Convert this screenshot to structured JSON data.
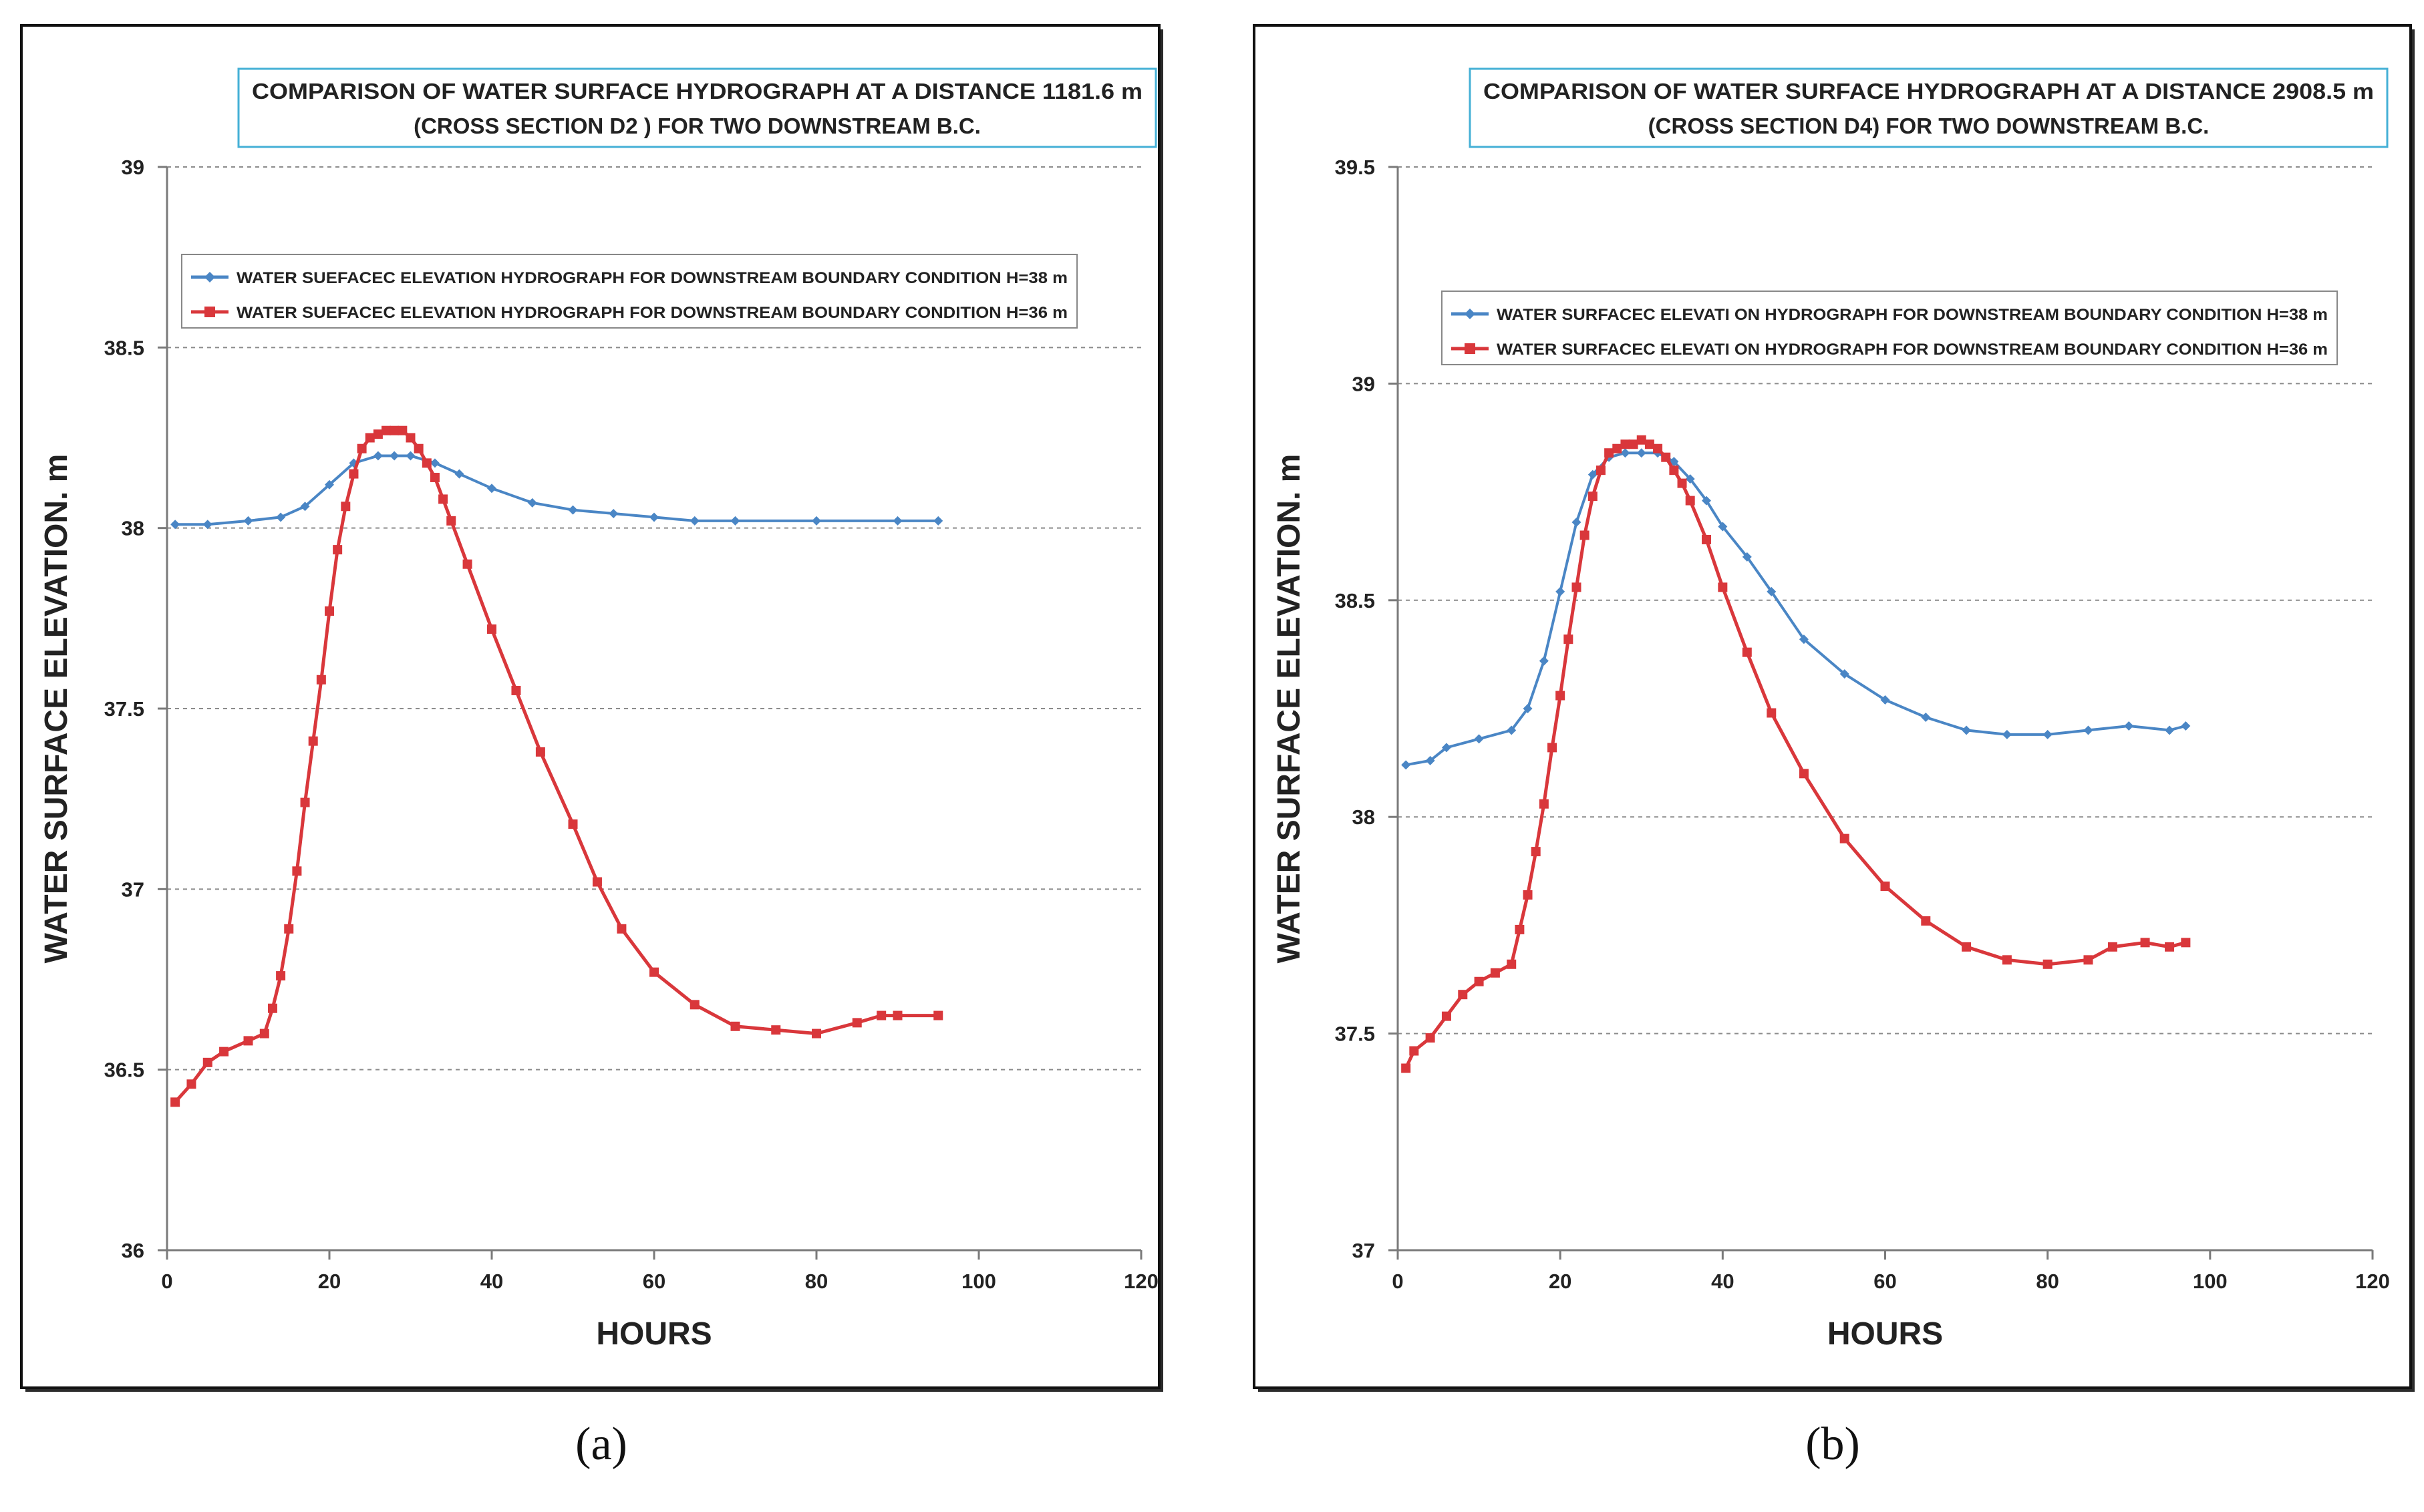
{
  "colors": {
    "series_h38": "#4a86c5",
    "series_h36": "#d9373b",
    "title_border": "#45b0d6",
    "grid": "#8c8c8c",
    "frame": "#111111"
  },
  "chart_data": [
    {
      "type": "line",
      "panel_label": "(a)",
      "title_line1": "COMPARISON OF  WATER SURFACE HYDROGRAPH AT A DISTANCE  1181.6 m",
      "title_line2": "(CROSS SECTION  D2 )   FOR TWO  DOWNSTREAM   B.C.",
      "xlabel": "HOURS",
      "ylabel": "WATER SURFACE ELEVATION. m",
      "xlim": [
        0,
        120
      ],
      "ylim": [
        36,
        39
      ],
      "xticks": [
        0,
        20,
        40,
        60,
        80,
        100,
        120
      ],
      "xtick_labels": [
        "0",
        "20",
        "40",
        "60",
        "80",
        "100",
        "120"
      ],
      "yticks": [
        36,
        36.5,
        37,
        37.5,
        38,
        38.5,
        39
      ],
      "ytick_labels": [
        "36",
        "36.5",
        "37",
        "37.5",
        "38",
        "38.5",
        "39"
      ],
      "grid": true,
      "legend_position": "upper-center",
      "series": [
        {
          "name": "WATER SUEFACEC ELEVATION HYDROGRAPH FOR DOWNSTREAM BOUNDARY CONDITION H=38 m",
          "color_key": "series_h38",
          "marker": "diamond",
          "x": [
            1,
            5,
            10,
            14,
            17,
            20,
            23,
            26,
            28,
            30,
            33,
            36,
            40,
            45,
            50,
            55,
            60,
            65,
            70,
            80,
            90,
            95
          ],
          "y": [
            38.01,
            38.01,
            38.02,
            38.03,
            38.06,
            38.12,
            38.18,
            38.2,
            38.2,
            38.2,
            38.18,
            38.15,
            38.11,
            38.07,
            38.05,
            38.04,
            38.03,
            38.02,
            38.02,
            38.02,
            38.02,
            38.02
          ]
        },
        {
          "name": "WATER SUEFACEC ELEVATION HYDROGRAPH FOR DOWNSTREAM BOUNDARY CONDITION H=36 m",
          "color_key": "series_h36",
          "marker": "square",
          "x": [
            1,
            3,
            5,
            7,
            10,
            12,
            13,
            14,
            15,
            16,
            17,
            18,
            19,
            20,
            21,
            22,
            23,
            24,
            25,
            26,
            27,
            28,
            29,
            30,
            31,
            32,
            33,
            34,
            35,
            37,
            40,
            43,
            46,
            50,
            53,
            56,
            60,
            65,
            70,
            75,
            80,
            85,
            88,
            90,
            95
          ],
          "y": [
            36.41,
            36.46,
            36.52,
            36.55,
            36.58,
            36.6,
            36.67,
            36.76,
            36.89,
            37.05,
            37.24,
            37.41,
            37.58,
            37.77,
            37.94,
            38.06,
            38.15,
            38.22,
            38.25,
            38.26,
            38.27,
            38.27,
            38.27,
            38.25,
            38.22,
            38.18,
            38.14,
            38.08,
            38.02,
            37.9,
            37.72,
            37.55,
            37.38,
            37.18,
            37.02,
            36.89,
            36.77,
            36.68,
            36.62,
            36.61,
            36.6,
            36.63,
            36.65,
            36.65,
            36.65
          ]
        }
      ]
    },
    {
      "type": "line",
      "panel_label": "(b)",
      "title_line1": "COMPARISON OF  WATER SURFACE HYDROGRAPH AT A DISTANCE  2908.5 m",
      "title_line2": "(CROSS SECTION  D4)    FOR TWO  DOWNSTREAM   B.C.",
      "xlabel": "HOURS",
      "ylabel": "WATER SURFACE ELEVATION. m",
      "xlim": [
        0,
        120
      ],
      "ylim": [
        37,
        39.5
      ],
      "xticks": [
        0,
        20,
        40,
        60,
        80,
        100,
        120
      ],
      "xtick_labels": [
        "0",
        "20",
        "40",
        "60",
        "80",
        "100",
        "120"
      ],
      "yticks": [
        37,
        37.5,
        38,
        38.5,
        39,
        39.5
      ],
      "ytick_labels": [
        "37",
        "37.5",
        "38",
        "38.5",
        "39",
        "39.5"
      ],
      "grid": true,
      "legend_position": "upper-center",
      "series": [
        {
          "name": "WATER SURFACEC ELEVATI ON HYDROGRAPH FOR DOWNSTREAM BOUNDARY CONDITION H=38 m",
          "color_key": "series_h38",
          "marker": "diamond",
          "x": [
            1,
            4,
            6,
            10,
            14,
            16,
            18,
            20,
            22,
            24,
            26,
            28,
            30,
            32,
            34,
            36,
            38,
            40,
            43,
            46,
            50,
            55,
            60,
            65,
            70,
            75,
            80,
            85,
            90,
            95,
            97
          ],
          "y": [
            38.12,
            38.13,
            38.16,
            38.18,
            38.2,
            38.25,
            38.36,
            38.52,
            38.68,
            38.79,
            38.83,
            38.84,
            38.84,
            38.84,
            38.82,
            38.78,
            38.73,
            38.67,
            38.6,
            38.52,
            38.41,
            38.33,
            38.27,
            38.23,
            38.2,
            38.19,
            38.19,
            38.2,
            38.21,
            38.2,
            38.21
          ]
        },
        {
          "name": "WATER SURFACEC ELEVATI ON HYDROGRAPH FOR DOWNSTREAM BOUNDARY CONDITION H=36 m",
          "color_key": "series_h36",
          "marker": "square",
          "x": [
            1,
            2,
            4,
            6,
            8,
            10,
            12,
            14,
            15,
            16,
            17,
            18,
            19,
            20,
            21,
            22,
            23,
            24,
            25,
            26,
            27,
            28,
            29,
            30,
            31,
            32,
            33,
            34,
            35,
            36,
            38,
            40,
            43,
            46,
            50,
            55,
            60,
            65,
            70,
            75,
            80,
            85,
            88,
            92,
            95,
            97
          ],
          "y": [
            37.42,
            37.46,
            37.49,
            37.54,
            37.59,
            37.62,
            37.64,
            37.66,
            37.74,
            37.82,
            37.92,
            38.03,
            38.16,
            38.28,
            38.41,
            38.53,
            38.65,
            38.74,
            38.8,
            38.84,
            38.85,
            38.86,
            38.86,
            38.87,
            38.86,
            38.85,
            38.83,
            38.8,
            38.77,
            38.73,
            38.64,
            38.53,
            38.38,
            38.24,
            38.1,
            37.95,
            37.84,
            37.76,
            37.7,
            37.67,
            37.66,
            37.67,
            37.7,
            37.71,
            37.7,
            37.71
          ]
        }
      ]
    }
  ]
}
